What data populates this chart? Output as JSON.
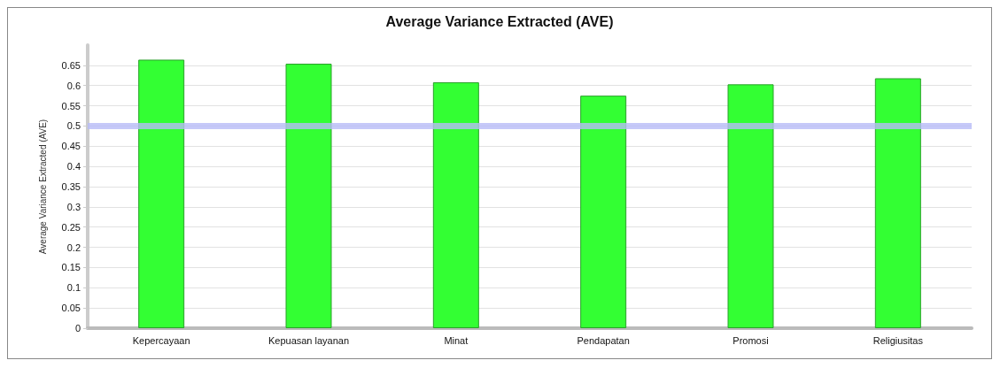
{
  "chart_data": {
    "type": "bar",
    "title": "Average Variance Extracted (AVE)",
    "ylabel": "Average Variance Extracted (AVE)",
    "categories": [
      "Kepercayaan",
      "Kepuasan layanan",
      "Minat",
      "Pendapatan",
      "Promosi",
      "Religiusitas"
    ],
    "values": [
      0.664,
      0.654,
      0.608,
      0.575,
      0.603,
      0.618
    ],
    "color": "#33ff33",
    "ylim": [
      0,
      0.7
    ],
    "yticks": [
      0,
      0.05,
      0.1,
      0.15,
      0.2,
      0.25,
      0.3,
      0.35,
      0.4,
      0.45,
      0.5,
      0.55,
      0.6,
      0.65
    ],
    "grid": "y",
    "ref_lines": [
      {
        "axis": "y",
        "value": 0.5,
        "color": "#b8bcf8"
      }
    ]
  }
}
